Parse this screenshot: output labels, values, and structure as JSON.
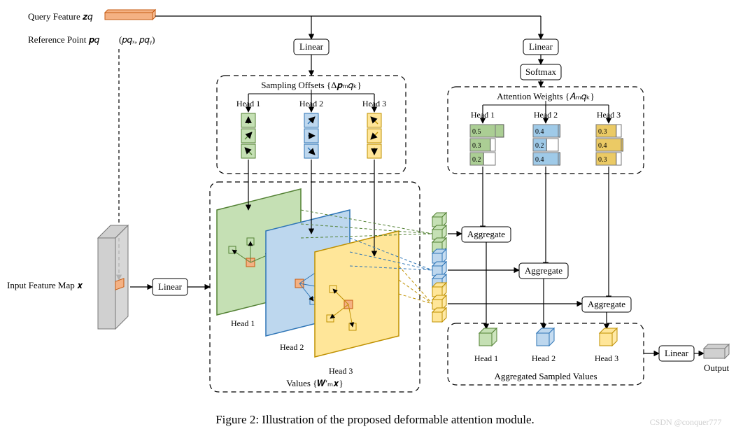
{
  "caption": "Figure 2: Illustration of the proposed deformable attention module.",
  "watermark": "CSDN @conquer777",
  "labels": {
    "query_feature": "Query Feature 𝒛𝑞",
    "reference_point": "Reference Point 𝒑𝑞",
    "ref_coords": "(𝑝𝑞ₓ, 𝑝𝑞ᵧ)",
    "input_feature_map": "Input Feature Map 𝒙",
    "linear": "Linear",
    "softmax": "Softmax",
    "sampling_offsets": "Sampling Offsets {Δ𝒑ₘ𝑞ₖ}",
    "attention_weights": "Attention Weights {𝐴ₘ𝑞ₖ}",
    "values": "Values {𝑾′ₘ𝒙}",
    "head1": "Head 1",
    "head2": "Head 2",
    "head3": "Head 3",
    "aggregate": "Aggregate",
    "agg_sampled": "Aggregated Sampled Values",
    "output": "Output"
  },
  "attention": {
    "heads": [
      {
        "color": "#9cc681",
        "weights": [
          0.5,
          0.3,
          0.2
        ]
      },
      {
        "color": "#8ec1e4",
        "weights": [
          0.4,
          0.2,
          0.4
        ]
      },
      {
        "color": "#e8c14a",
        "weights": [
          0.3,
          0.4,
          0.3
        ]
      }
    ]
  },
  "colors": {
    "query_fill": "#f4b183",
    "query_stroke": "#c55a11",
    "head1_fill": "#c5e0b4",
    "head1_stroke": "#548235",
    "head2_fill": "#bdd7ee",
    "head2_stroke": "#2e75b6",
    "head3_fill": "#ffe699",
    "head3_stroke": "#bf9000",
    "gray_fill": "#d0d0d0",
    "gray_stroke": "#808080",
    "box_stroke": "#000000",
    "box_fill": "#ffffff",
    "watermark": "#d0d0d0"
  },
  "fontsizes": {
    "label": 13,
    "head_label": 12,
    "caption": 17,
    "weight": 10,
    "watermark": 12
  },
  "dashed_box_dash": "7 5"
}
